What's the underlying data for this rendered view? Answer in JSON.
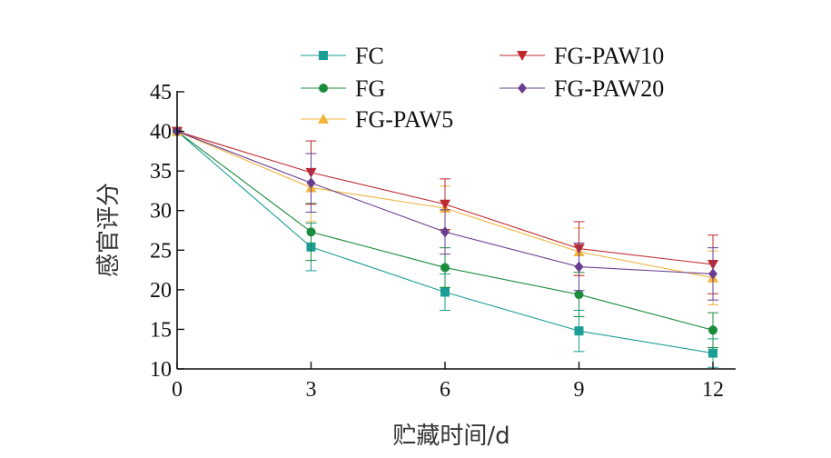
{
  "chart_data": {
    "type": "line",
    "title": "",
    "xlabel": "贮藏时间/d",
    "ylabel": "感官评分",
    "x": [
      0,
      3,
      6,
      9,
      12
    ],
    "x_ticks": [
      "0",
      "3",
      "6",
      "9",
      "12"
    ],
    "xlim": [
      0,
      12
    ],
    "y_ticks": [
      "10",
      "15",
      "20",
      "25",
      "30",
      "35",
      "40",
      "45"
    ],
    "ylim": [
      10,
      45
    ],
    "grid": false,
    "legend_position": "top",
    "series": [
      {
        "name": "FC",
        "color": "#1a9e96",
        "marker": "square",
        "values": [
          40,
          25.4,
          19.7,
          14.8,
          12.0
        ],
        "errors": [
          0,
          3.0,
          2.3,
          2.6,
          1.8
        ]
      },
      {
        "name": "FG",
        "color": "#1b8c3c",
        "marker": "circle",
        "values": [
          40,
          27.3,
          22.8,
          19.4,
          14.9
        ],
        "errors": [
          0,
          3.6,
          2.5,
          2.8,
          2.2
        ]
      },
      {
        "name": "FG-PAW5",
        "color": "#f0b43c",
        "marker": "triangle-up",
        "values": [
          40,
          32.9,
          30.3,
          24.8,
          21.5
        ],
        "errors": [
          0,
          4.3,
          2.8,
          3.0,
          3.4
        ]
      },
      {
        "name": "FG-PAW10",
        "color": "#c0282d",
        "marker": "triangle-down",
        "values": [
          40,
          34.8,
          30.8,
          25.2,
          23.2
        ],
        "errors": [
          0,
          4.0,
          3.2,
          3.4,
          3.7
        ]
      },
      {
        "name": "FG-PAW20",
        "color": "#6a3d8f",
        "marker": "diamond",
        "values": [
          40,
          33.5,
          27.3,
          22.9,
          22.0
        ],
        "errors": [
          0,
          3.7,
          2.8,
          3.0,
          3.3
        ]
      }
    ]
  }
}
